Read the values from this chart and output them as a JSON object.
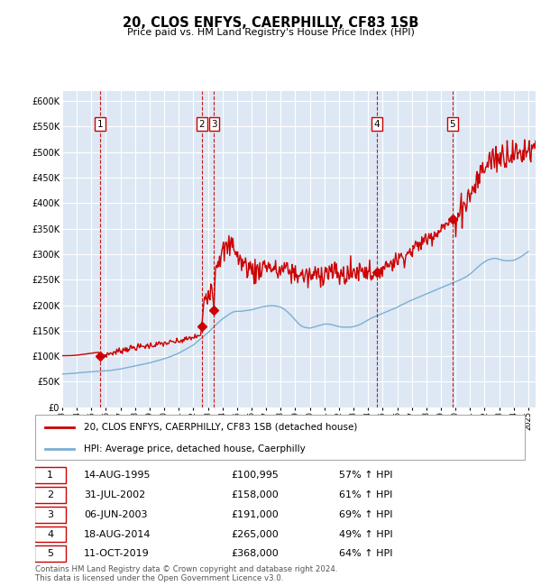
{
  "title": "20, CLOS ENFYS, CAERPHILLY, CF83 1SB",
  "subtitle": "Price paid vs. HM Land Registry's House Price Index (HPI)",
  "legend_line1": "20, CLOS ENFYS, CAERPHILLY, CF83 1SB (detached house)",
  "legend_line2": "HPI: Average price, detached house, Caerphilly",
  "footer_line1": "Contains HM Land Registry data © Crown copyright and database right 2024.",
  "footer_line2": "This data is licensed under the Open Government Licence v3.0.",
  "sale_color": "#cc0000",
  "hpi_color": "#7bafd4",
  "plot_bg_color": "#dde8f4",
  "hatch_color": "#c8c8c8",
  "grid_color": "#ffffff",
  "ylim": [
    0,
    620000
  ],
  "yticks": [
    0,
    50000,
    100000,
    150000,
    200000,
    250000,
    300000,
    350000,
    400000,
    450000,
    500000,
    550000,
    600000
  ],
  "xlim_start": 1993.0,
  "xlim_end": 2025.5,
  "sales": [
    {
      "num": 1,
      "date_label": "14-AUG-1995",
      "year": 1995.62,
      "price": 100995,
      "pct": "57%",
      "dir": "↑"
    },
    {
      "num": 2,
      "date_label": "31-JUL-2002",
      "year": 2002.58,
      "price": 158000,
      "pct": "61%",
      "dir": "↑"
    },
    {
      "num": 3,
      "date_label": "06-JUN-2003",
      "year": 2003.43,
      "price": 191000,
      "pct": "69%",
      "dir": "↑"
    },
    {
      "num": 4,
      "date_label": "18-AUG-2014",
      "year": 2014.62,
      "price": 265000,
      "pct": "49%",
      "dir": "↑"
    },
    {
      "num": 5,
      "date_label": "11-OCT-2019",
      "year": 2019.78,
      "price": 368000,
      "pct": "64%",
      "dir": "↑"
    }
  ],
  "hpi_data": [
    [
      1993.0,
      65000
    ],
    [
      1993.25,
      65500
    ],
    [
      1993.5,
      66000
    ],
    [
      1993.75,
      66500
    ],
    [
      1994.0,
      67000
    ],
    [
      1994.25,
      68000
    ],
    [
      1994.5,
      68500
    ],
    [
      1994.75,
      69000
    ],
    [
      1995.0,
      69500
    ],
    [
      1995.25,
      70000
    ],
    [
      1995.5,
      70500
    ],
    [
      1995.75,
      71000
    ],
    [
      1996.0,
      71500
    ],
    [
      1996.25,
      72000
    ],
    [
      1996.5,
      73000
    ],
    [
      1996.75,
      74000
    ],
    [
      1997.0,
      75000
    ],
    [
      1997.25,
      76500
    ],
    [
      1997.5,
      78000
    ],
    [
      1997.75,
      79500
    ],
    [
      1998.0,
      81000
    ],
    [
      1998.25,
      82500
    ],
    [
      1998.5,
      84000
    ],
    [
      1998.75,
      85500
    ],
    [
      1999.0,
      87000
    ],
    [
      1999.25,
      89000
    ],
    [
      1999.5,
      91000
    ],
    [
      1999.75,
      93000
    ],
    [
      2000.0,
      95000
    ],
    [
      2000.25,
      97500
    ],
    [
      2000.5,
      100000
    ],
    [
      2000.75,
      103000
    ],
    [
      2001.0,
      106000
    ],
    [
      2001.25,
      110000
    ],
    [
      2001.5,
      114000
    ],
    [
      2001.75,
      118000
    ],
    [
      2002.0,
      122000
    ],
    [
      2002.25,
      128000
    ],
    [
      2002.5,
      134000
    ],
    [
      2002.75,
      140000
    ],
    [
      2003.0,
      146000
    ],
    [
      2003.25,
      153000
    ],
    [
      2003.5,
      160000
    ],
    [
      2003.75,
      167000
    ],
    [
      2004.0,
      173000
    ],
    [
      2004.25,
      178000
    ],
    [
      2004.5,
      183000
    ],
    [
      2004.75,
      187000
    ],
    [
      2005.0,
      188000
    ],
    [
      2005.25,
      188000
    ],
    [
      2005.5,
      189000
    ],
    [
      2005.75,
      190000
    ],
    [
      2006.0,
      191000
    ],
    [
      2006.25,
      193000
    ],
    [
      2006.5,
      195000
    ],
    [
      2006.75,
      197000
    ],
    [
      2007.0,
      198000
    ],
    [
      2007.25,
      199000
    ],
    [
      2007.5,
      199000
    ],
    [
      2007.75,
      198000
    ],
    [
      2008.0,
      196000
    ],
    [
      2008.25,
      192000
    ],
    [
      2008.5,
      186000
    ],
    [
      2008.75,
      179000
    ],
    [
      2009.0,
      171000
    ],
    [
      2009.25,
      163000
    ],
    [
      2009.5,
      158000
    ],
    [
      2009.75,
      156000
    ],
    [
      2010.0,
      155000
    ],
    [
      2010.25,
      157000
    ],
    [
      2010.5,
      159000
    ],
    [
      2010.75,
      161000
    ],
    [
      2011.0,
      163000
    ],
    [
      2011.25,
      163000
    ],
    [
      2011.5,
      162000
    ],
    [
      2011.75,
      160000
    ],
    [
      2012.0,
      158000
    ],
    [
      2012.25,
      157000
    ],
    [
      2012.5,
      157000
    ],
    [
      2012.75,
      157000
    ],
    [
      2013.0,
      158000
    ],
    [
      2013.25,
      160000
    ],
    [
      2013.5,
      163000
    ],
    [
      2013.75,
      167000
    ],
    [
      2014.0,
      171000
    ],
    [
      2014.25,
      175000
    ],
    [
      2014.5,
      178000
    ],
    [
      2014.75,
      181000
    ],
    [
      2015.0,
      184000
    ],
    [
      2015.25,
      187000
    ],
    [
      2015.5,
      190000
    ],
    [
      2015.75,
      193000
    ],
    [
      2016.0,
      196000
    ],
    [
      2016.25,
      200000
    ],
    [
      2016.5,
      203000
    ],
    [
      2016.75,
      207000
    ],
    [
      2017.0,
      210000
    ],
    [
      2017.25,
      213000
    ],
    [
      2017.5,
      216000
    ],
    [
      2017.75,
      219000
    ],
    [
      2018.0,
      222000
    ],
    [
      2018.25,
      225000
    ],
    [
      2018.5,
      228000
    ],
    [
      2018.75,
      231000
    ],
    [
      2019.0,
      234000
    ],
    [
      2019.25,
      237000
    ],
    [
      2019.5,
      240000
    ],
    [
      2019.75,
      243000
    ],
    [
      2020.0,
      246000
    ],
    [
      2020.25,
      249000
    ],
    [
      2020.5,
      252000
    ],
    [
      2020.75,
      256000
    ],
    [
      2021.0,
      261000
    ],
    [
      2021.25,
      267000
    ],
    [
      2021.5,
      274000
    ],
    [
      2021.75,
      280000
    ],
    [
      2022.0,
      285000
    ],
    [
      2022.25,
      289000
    ],
    [
      2022.5,
      291000
    ],
    [
      2022.75,
      292000
    ],
    [
      2023.0,
      290000
    ],
    [
      2023.25,
      288000
    ],
    [
      2023.5,
      287000
    ],
    [
      2023.75,
      287000
    ],
    [
      2024.0,
      288000
    ],
    [
      2024.25,
      291000
    ],
    [
      2024.5,
      295000
    ],
    [
      2024.75,
      300000
    ],
    [
      2025.0,
      305000
    ]
  ],
  "red_line_data": [
    [
      1993.0,
      100995
    ],
    [
      1993.5,
      100995
    ],
    [
      1993.75,
      101500
    ],
    [
      1994.0,
      102000
    ],
    [
      1994.25,
      103000
    ],
    [
      1994.5,
      104000
    ],
    [
      1994.75,
      105000
    ],
    [
      1995.0,
      106000
    ],
    [
      1995.25,
      107000
    ],
    [
      1995.5,
      107500
    ],
    [
      1995.62,
      100995
    ],
    [
      1995.62,
      100995
    ],
    [
      1996.0,
      103000
    ],
    [
      1996.25,
      105000
    ],
    [
      1996.5,
      107000
    ],
    [
      1996.75,
      109000
    ],
    [
      1997.0,
      111000
    ],
    [
      1997.25,
      113000
    ],
    [
      1997.5,
      115000
    ],
    [
      1997.75,
      116000
    ],
    [
      1998.0,
      117000
    ],
    [
      1998.25,
      118000
    ],
    [
      1998.5,
      119000
    ],
    [
      1998.75,
      120000
    ],
    [
      1999.0,
      121000
    ],
    [
      1999.25,
      122000
    ],
    [
      1999.5,
      123000
    ],
    [
      1999.75,
      124000
    ],
    [
      2000.0,
      125000
    ],
    [
      2000.25,
      126000
    ],
    [
      2000.5,
      127000
    ],
    [
      2000.75,
      128000
    ],
    [
      2001.0,
      129000
    ],
    [
      2001.25,
      131000
    ],
    [
      2001.5,
      133000
    ],
    [
      2001.75,
      135000
    ],
    [
      2002.0,
      137000
    ],
    [
      2002.25,
      139000
    ],
    [
      2002.5,
      141000
    ],
    [
      2002.58,
      158000
    ],
    [
      2002.75,
      215000
    ],
    [
      2003.0,
      225000
    ],
    [
      2003.25,
      240000
    ],
    [
      2003.43,
      191000
    ],
    [
      2003.5,
      270000
    ],
    [
      2003.75,
      295000
    ],
    [
      2004.0,
      300000
    ],
    [
      2004.25,
      310000
    ],
    [
      2004.5,
      315000
    ],
    [
      2004.75,
      325000
    ],
    [
      2005.0,
      295000
    ],
    [
      2005.25,
      285000
    ],
    [
      2005.5,
      280000
    ],
    [
      2005.75,
      275000
    ],
    [
      2006.0,
      270000
    ],
    [
      2006.25,
      265000
    ],
    [
      2006.5,
      270000
    ],
    [
      2006.75,
      275000
    ],
    [
      2007.0,
      280000
    ],
    [
      2007.25,
      275000
    ],
    [
      2007.5,
      270000
    ],
    [
      2007.75,
      265000
    ],
    [
      2008.0,
      268000
    ],
    [
      2008.25,
      272000
    ],
    [
      2008.5,
      268000
    ],
    [
      2008.75,
      265000
    ],
    [
      2009.0,
      262000
    ],
    [
      2009.25,
      260000
    ],
    [
      2009.5,
      258000
    ],
    [
      2009.75,
      256000
    ],
    [
      2010.0,
      255000
    ],
    [
      2010.25,
      258000
    ],
    [
      2010.5,
      260000
    ],
    [
      2010.75,
      263000
    ],
    [
      2011.0,
      265000
    ],
    [
      2011.25,
      267000
    ],
    [
      2011.5,
      265000
    ],
    [
      2011.75,
      262000
    ],
    [
      2012.0,
      260000
    ],
    [
      2012.25,
      258000
    ],
    [
      2012.5,
      260000
    ],
    [
      2012.75,
      262000
    ],
    [
      2013.0,
      264000
    ],
    [
      2013.25,
      267000
    ],
    [
      2013.5,
      269000
    ],
    [
      2013.75,
      271000
    ],
    [
      2014.0,
      268000
    ],
    [
      2014.25,
      266000
    ],
    [
      2014.5,
      264000
    ],
    [
      2014.62,
      265000
    ],
    [
      2014.75,
      270000
    ],
    [
      2015.0,
      275000
    ],
    [
      2015.25,
      278000
    ],
    [
      2015.5,
      282000
    ],
    [
      2015.75,
      286000
    ],
    [
      2016.0,
      290000
    ],
    [
      2016.25,
      294000
    ],
    [
      2016.5,
      298000
    ],
    [
      2016.75,
      302000
    ],
    [
      2017.0,
      307000
    ],
    [
      2017.25,
      313000
    ],
    [
      2017.5,
      319000
    ],
    [
      2017.75,
      325000
    ],
    [
      2018.0,
      330000
    ],
    [
      2018.25,
      335000
    ],
    [
      2018.5,
      340000
    ],
    [
      2018.75,
      345000
    ],
    [
      2019.0,
      350000
    ],
    [
      2019.25,
      355000
    ],
    [
      2019.5,
      360000
    ],
    [
      2019.78,
      368000
    ],
    [
      2020.0,
      375000
    ],
    [
      2020.25,
      385000
    ],
    [
      2020.5,
      395000
    ],
    [
      2020.75,
      405000
    ],
    [
      2021.0,
      415000
    ],
    [
      2021.25,
      430000
    ],
    [
      2021.5,
      445000
    ],
    [
      2021.75,
      460000
    ],
    [
      2022.0,
      470000
    ],
    [
      2022.25,
      480000
    ],
    [
      2022.5,
      490000
    ],
    [
      2022.75,
      488000
    ],
    [
      2023.0,
      490000
    ],
    [
      2023.25,
      495000
    ],
    [
      2023.5,
      498000
    ],
    [
      2023.75,
      500000
    ],
    [
      2024.0,
      497000
    ],
    [
      2024.25,
      494000
    ],
    [
      2024.5,
      498000
    ],
    [
      2024.75,
      504000
    ],
    [
      2025.0,
      508000
    ],
    [
      2025.5,
      510000
    ]
  ],
  "xtick_years": [
    1993,
    1994,
    1995,
    1996,
    1997,
    1998,
    1999,
    2000,
    2001,
    2002,
    2003,
    2004,
    2005,
    2006,
    2007,
    2008,
    2009,
    2010,
    2011,
    2012,
    2013,
    2014,
    2015,
    2016,
    2017,
    2018,
    2019,
    2020,
    2021,
    2022,
    2023,
    2024,
    2025
  ]
}
